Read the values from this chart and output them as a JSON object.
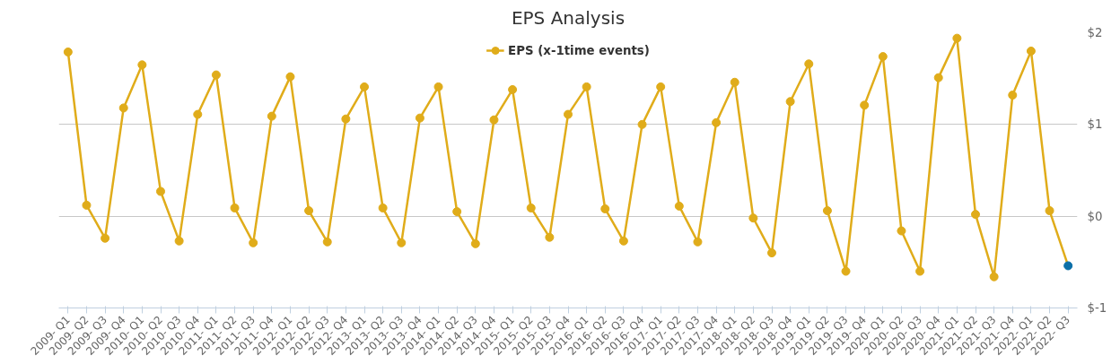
{
  "chart_data": {
    "type": "line",
    "title": "EPS Analysis",
    "categories": [
      "2009- Q1",
      "2009- Q2",
      "2009- Q3",
      "2009- Q4",
      "2010- Q1",
      "2010- Q2",
      "2010- Q3",
      "2010- Q4",
      "2011- Q1",
      "2011- Q2",
      "2011- Q3",
      "2011- Q4",
      "2012- Q1",
      "2012- Q2",
      "2012- Q3",
      "2012- Q4",
      "2013- Q1",
      "2013- Q2",
      "2013- Q3",
      "2013- Q4",
      "2014- Q1",
      "2014- Q2",
      "2014- Q3",
      "2014- Q4",
      "2015- Q1",
      "2015- Q2",
      "2015- Q3",
      "2015- Q4",
      "2016- Q1",
      "2016- Q2",
      "2016- Q3",
      "2016- Q4",
      "2017- Q1",
      "2017- Q2",
      "2017- Q3",
      "2017- Q4",
      "2018- Q1",
      "2018- Q2",
      "2018- Q3",
      "2018- Q4",
      "2019- Q1",
      "2019- Q2",
      "2019- Q3",
      "2019- Q4",
      "2020- Q1",
      "2020- Q2",
      "2020- Q3",
      "2020- Q4",
      "2021- Q1",
      "2021- Q2",
      "2021- Q3",
      "2021- Q4",
      "2022- Q1",
      "2022- Q2",
      "2022- Q3"
    ],
    "series": [
      {
        "name": "EPS (x-1time events)",
        "color": "#e0ac1a",
        "colors": [
          "#e0ac1a",
          "#e0ac1a",
          "#e0ac1a",
          "#e0ac1a",
          "#e0ac1a",
          "#e0ac1a",
          "#e0ac1a",
          "#e0ac1a",
          "#e0ac1a",
          "#e0ac1a",
          "#e0ac1a",
          "#e0ac1a",
          "#e0ac1a",
          "#e0ac1a",
          "#e0ac1a",
          "#e0ac1a",
          "#e0ac1a",
          "#e0ac1a",
          "#e0ac1a",
          "#e0ac1a",
          "#e0ac1a",
          "#e0ac1a",
          "#e0ac1a",
          "#e0ac1a",
          "#e0ac1a",
          "#e0ac1a",
          "#e0ac1a",
          "#e0ac1a",
          "#e0ac1a",
          "#e0ac1a",
          "#e0ac1a",
          "#e0ac1a",
          "#e0ac1a",
          "#e0ac1a",
          "#e0ac1a",
          "#e0ac1a",
          "#e0ac1a",
          "#e0ac1a",
          "#e0ac1a",
          "#e0ac1a",
          "#e0ac1a",
          "#e0ac1a",
          "#e0ac1a",
          "#e0ac1a",
          "#e0ac1a",
          "#e0ac1a",
          "#e0ac1a",
          "#e0ac1a",
          "#e0ac1a",
          "#e0ac1a",
          "#e0ac1a",
          "#e0ac1a",
          "#e0ac1a",
          "#e0ac1a",
          "#0b6fa8"
        ],
        "values": [
          1.79,
          0.12,
          -0.24,
          1.18,
          1.65,
          0.27,
          -0.27,
          1.11,
          1.54,
          0.09,
          -0.29,
          1.09,
          1.52,
          0.06,
          -0.28,
          1.06,
          1.41,
          0.09,
          -0.29,
          1.07,
          1.41,
          0.05,
          -0.3,
          1.05,
          1.38,
          0.09,
          -0.23,
          1.11,
          1.41,
          0.08,
          -0.27,
          1.0,
          1.41,
          0.11,
          -0.28,
          1.02,
          1.46,
          -0.02,
          -0.4,
          1.25,
          1.66,
          0.06,
          -0.6,
          1.21,
          1.74,
          -0.16,
          -0.6,
          1.51,
          1.94,
          0.02,
          -0.66,
          1.32,
          1.8,
          0.06,
          -0.54
        ]
      }
    ],
    "ylim": [
      -1,
      2
    ],
    "yticks": [
      {
        "value": -1,
        "label": "$-1"
      },
      {
        "value": 0,
        "label": "$0"
      },
      {
        "value": 1,
        "label": "$1"
      },
      {
        "value": 2,
        "label": "$2"
      }
    ],
    "grid": "y",
    "legend": "top",
    "marker": "circle",
    "line_style": "solid"
  }
}
